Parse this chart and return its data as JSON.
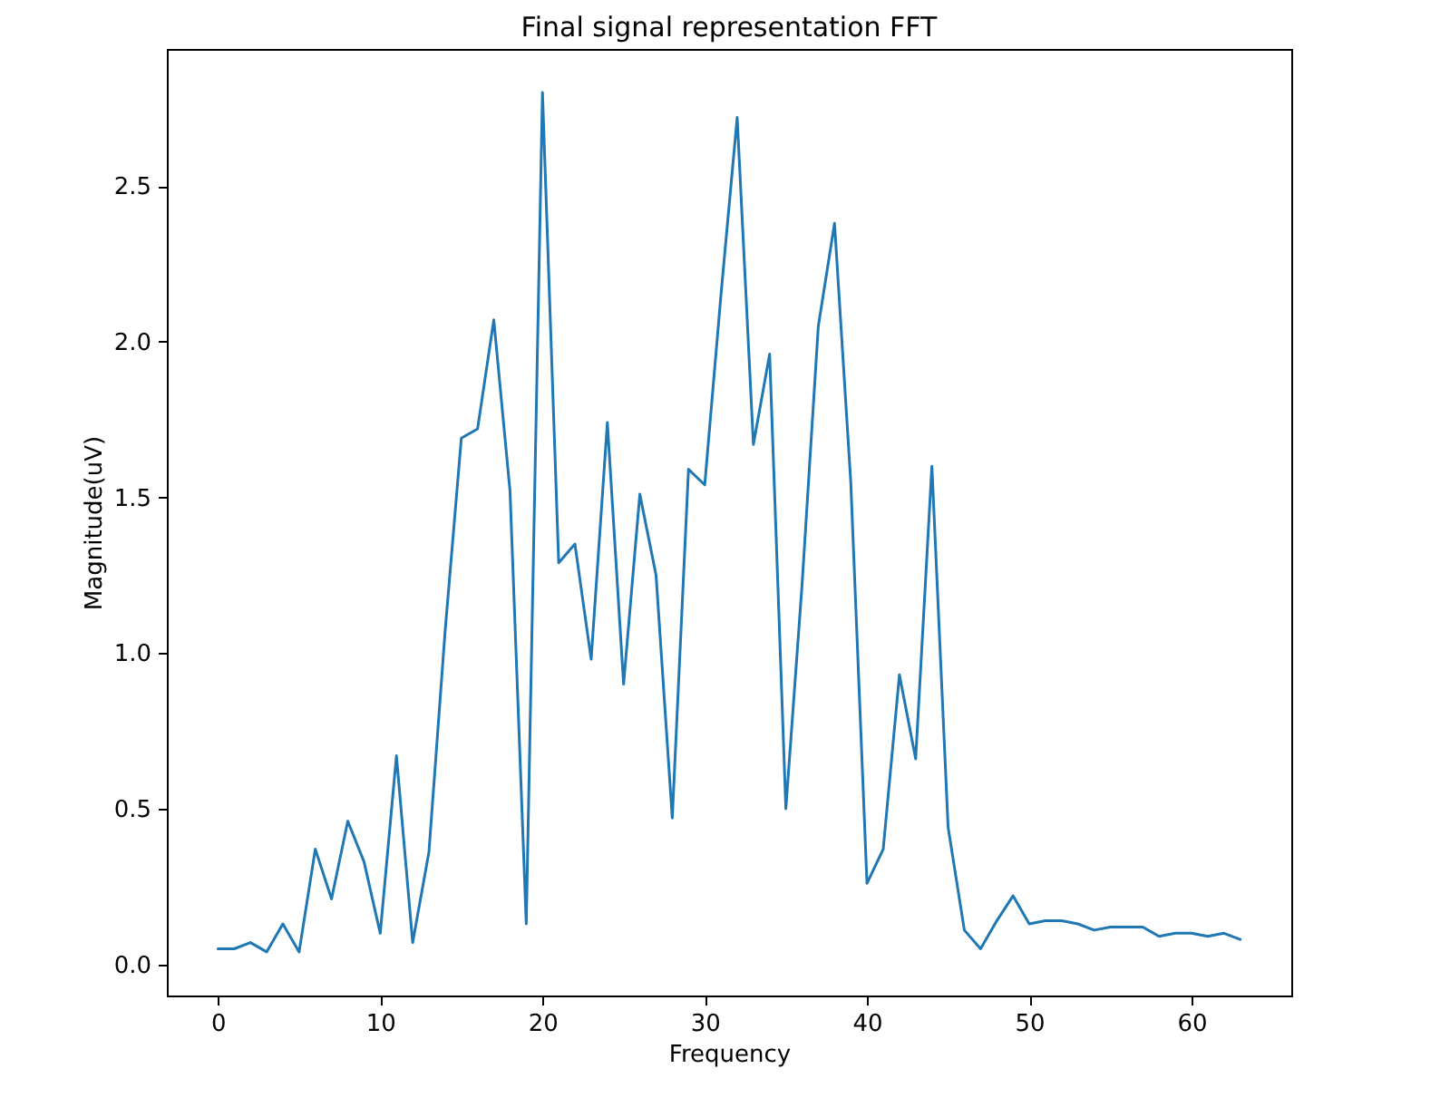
{
  "chart_data": {
    "type": "line",
    "title": "Final signal representation FFT",
    "xlabel": "Frequency",
    "ylabel": "Magnitude(uV)",
    "x": [
      0,
      1,
      2,
      3,
      4,
      5,
      6,
      7,
      8,
      9,
      10,
      11,
      12,
      13,
      14,
      15,
      16,
      17,
      18,
      19,
      20,
      21,
      22,
      23,
      24,
      25,
      26,
      27,
      28,
      29,
      30,
      31,
      32,
      33,
      34,
      35,
      36,
      37,
      38,
      39,
      40,
      41,
      42,
      43,
      44,
      45,
      46,
      47,
      48,
      49,
      50,
      51,
      52,
      53,
      54,
      55,
      56,
      57,
      58,
      59,
      60,
      61,
      62,
      63
    ],
    "series": [
      {
        "color": "#1f77b4",
        "values": [
          0.05,
          0.05,
          0.07,
          0.04,
          0.13,
          0.04,
          0.37,
          0.21,
          0.46,
          0.33,
          0.1,
          0.67,
          0.07,
          0.36,
          1.07,
          1.69,
          1.72,
          2.07,
          1.52,
          0.13,
          2.8,
          1.29,
          1.35,
          0.98,
          1.74,
          0.9,
          1.51,
          1.25,
          0.47,
          1.59,
          1.54,
          2.15,
          2.72,
          1.67,
          1.96,
          0.5,
          1.22,
          2.05,
          2.38,
          1.55,
          0.26,
          0.37,
          0.93,
          0.66,
          1.6,
          0.44,
          0.11,
          0.05,
          0.14,
          0.22,
          0.13,
          0.14,
          0.14,
          0.13,
          0.11,
          0.12,
          0.12,
          0.12,
          0.09,
          0.1,
          0.1,
          0.09,
          0.1,
          0.08
        ]
      }
    ],
    "xlim": [
      -3.15,
      66.15
    ],
    "ylim": [
      -0.1,
      2.94
    ],
    "xticks": [
      0,
      10,
      20,
      30,
      40,
      50,
      60
    ],
    "yticks": [
      {
        "value": 0,
        "label": "0.0"
      },
      {
        "value": 0.5,
        "label": "0.5"
      },
      {
        "value": 1,
        "label": "1.0"
      },
      {
        "value": 1.5,
        "label": "1.5"
      },
      {
        "value": 2,
        "label": "2.0"
      },
      {
        "value": 2.5,
        "label": "2.5"
      }
    ],
    "grid": false,
    "marker": "none",
    "line_style": "solid"
  }
}
